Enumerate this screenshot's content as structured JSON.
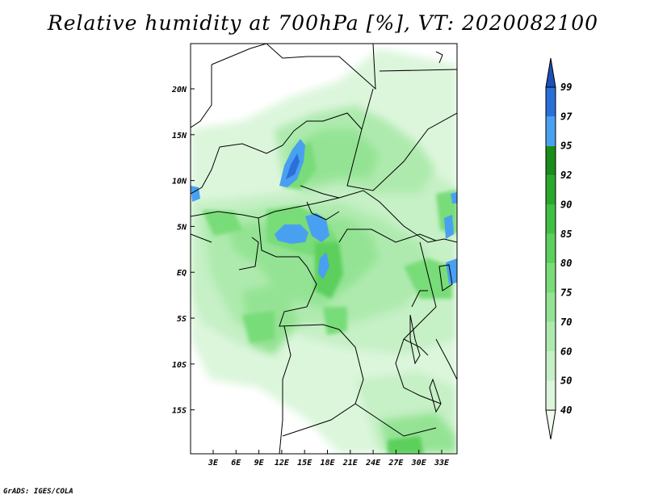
{
  "title": "Relative humidity at 700hPa [%], VT: 2020082100",
  "credit": "GrADS: IGES/COLA",
  "map": {
    "lat_labels": [
      "20N",
      "15N",
      "10N",
      "5N",
      "EQ",
      "5S",
      "10S",
      "15S"
    ],
    "lon_labels": [
      "3E",
      "6E",
      "9E",
      "12E",
      "15E",
      "18E",
      "21E",
      "24E",
      "27E",
      "30E",
      "33E"
    ],
    "field": "relative humidity",
    "level": "700hPa",
    "unit": "%"
  },
  "colorbar": {
    "levels": [
      "40",
      "50",
      "60",
      "70",
      "75",
      "80",
      "85",
      "90",
      "92",
      "95",
      "97",
      "99"
    ],
    "colors": [
      "#f0fcf0",
      "#dcf6dc",
      "#c6f0c6",
      "#aeeaae",
      "#94e394",
      "#78dc78",
      "#5ccf5c",
      "#40c040",
      "#2aa82a",
      "#1a8c1a",
      "#4aa0f0",
      "#2a70d8",
      "#1a50b8"
    ]
  }
}
